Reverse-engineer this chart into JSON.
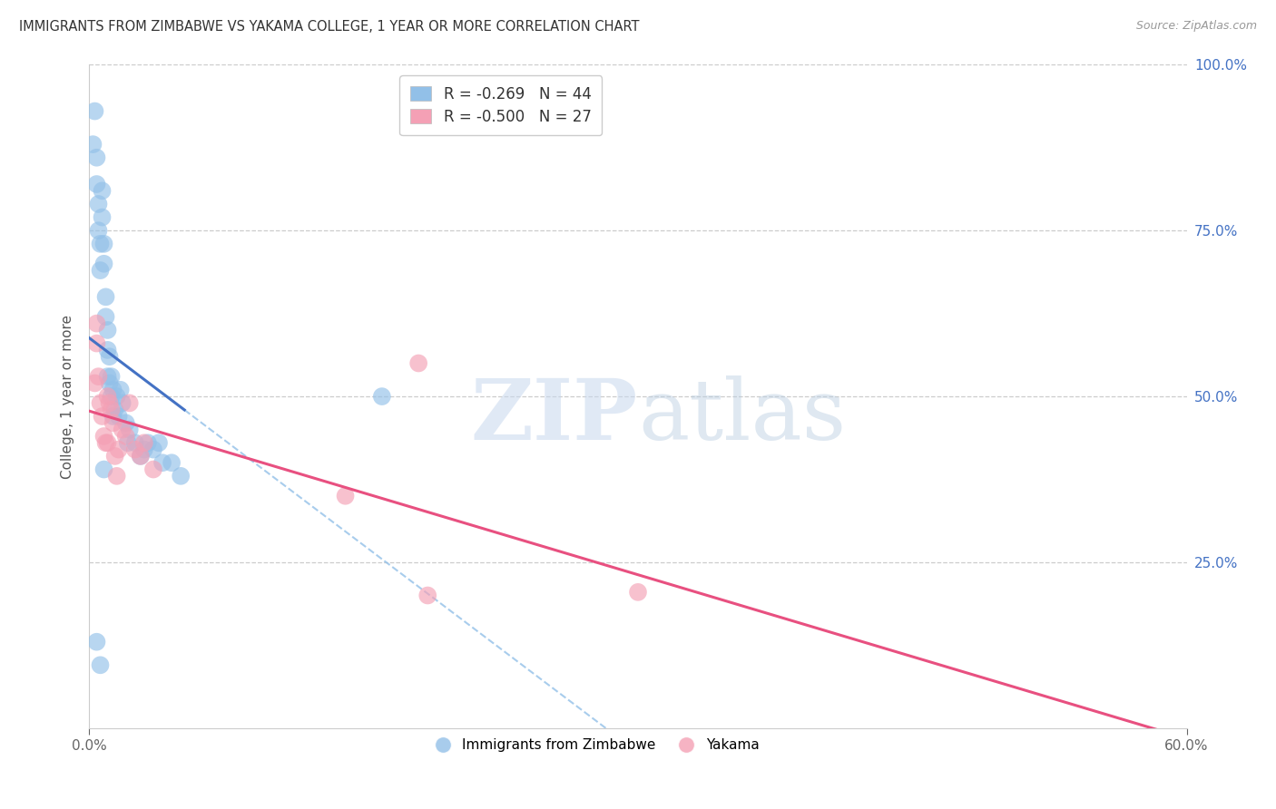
{
  "title": "IMMIGRANTS FROM ZIMBABWE VS YAKAMA COLLEGE, 1 YEAR OR MORE CORRELATION CHART",
  "source": "Source: ZipAtlas.com",
  "ylabel_left": "College, 1 year or more",
  "xlim": [
    0.0,
    0.6
  ],
  "ylim": [
    0.0,
    1.0
  ],
  "yticks_right": [
    0.25,
    0.5,
    0.75,
    1.0
  ],
  "ytick_labels_right": [
    "25.0%",
    "50.0%",
    "75.0%",
    "100.0%"
  ],
  "blue_R": -0.269,
  "blue_N": 44,
  "pink_R": -0.5,
  "pink_N": 27,
  "legend_blue_label": "Immigrants from Zimbabwe",
  "legend_pink_label": "Yakama",
  "blue_color": "#92c0e8",
  "pink_color": "#f4a0b5",
  "blue_line_color": "#4472c4",
  "pink_line_color": "#e85080",
  "blue_scatter_x": [
    0.002,
    0.003,
    0.004,
    0.004,
    0.005,
    0.005,
    0.006,
    0.006,
    0.007,
    0.007,
    0.008,
    0.008,
    0.009,
    0.009,
    0.01,
    0.01,
    0.01,
    0.011,
    0.011,
    0.012,
    0.012,
    0.013,
    0.013,
    0.014,
    0.015,
    0.016,
    0.017,
    0.018,
    0.02,
    0.021,
    0.022,
    0.025,
    0.028,
    0.03,
    0.032,
    0.035,
    0.038,
    0.04,
    0.045,
    0.05,
    0.16,
    0.004,
    0.006,
    0.008
  ],
  "blue_scatter_y": [
    0.88,
    0.93,
    0.82,
    0.86,
    0.79,
    0.75,
    0.73,
    0.69,
    0.81,
    0.77,
    0.73,
    0.7,
    0.65,
    0.62,
    0.6,
    0.57,
    0.53,
    0.56,
    0.52,
    0.53,
    0.5,
    0.51,
    0.47,
    0.48,
    0.5,
    0.47,
    0.51,
    0.49,
    0.46,
    0.43,
    0.45,
    0.43,
    0.41,
    0.42,
    0.43,
    0.42,
    0.43,
    0.4,
    0.4,
    0.38,
    0.5,
    0.13,
    0.095,
    0.39
  ],
  "pink_scatter_x": [
    0.003,
    0.004,
    0.004,
    0.005,
    0.006,
    0.007,
    0.008,
    0.009,
    0.01,
    0.01,
    0.011,
    0.012,
    0.013,
    0.014,
    0.015,
    0.016,
    0.018,
    0.02,
    0.022,
    0.025,
    0.028,
    0.03,
    0.035,
    0.14,
    0.18,
    0.185,
    0.3
  ],
  "pink_scatter_y": [
    0.52,
    0.58,
    0.61,
    0.53,
    0.49,
    0.47,
    0.44,
    0.43,
    0.5,
    0.43,
    0.49,
    0.48,
    0.46,
    0.41,
    0.38,
    0.42,
    0.45,
    0.44,
    0.49,
    0.42,
    0.41,
    0.43,
    0.39,
    0.35,
    0.55,
    0.2,
    0.205
  ],
  "watermark_zip": "ZIP",
  "watermark_atlas": "atlas",
  "background_color": "#ffffff",
  "grid_color": "#cccccc",
  "right_axis_color": "#4472c4"
}
